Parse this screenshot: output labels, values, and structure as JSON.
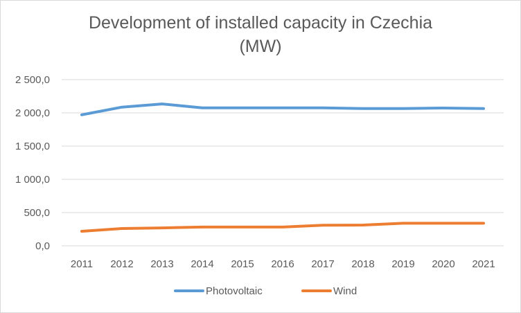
{
  "chart_data": {
    "type": "line",
    "title_line1": "Development of installed capacity in Czechia",
    "title_line2": "(MW)",
    "categories": [
      "2011",
      "2012",
      "2013",
      "2014",
      "2015",
      "2016",
      "2017",
      "2018",
      "2019",
      "2020",
      "2021"
    ],
    "y_ticks": [
      0,
      500,
      1000,
      1500,
      2000,
      2500
    ],
    "y_tick_labels": [
      "0,0",
      "500,0",
      "1 000,0",
      "1 500,0",
      "2 000,0",
      "2 500,0"
    ],
    "ylim": [
      0,
      2500
    ],
    "grid": true,
    "legend_position": "bottom",
    "series": [
      {
        "name": "Photovoltaic",
        "color": "#5b9bd5",
        "values": [
          1971,
          2086,
          2134,
          2075,
          2075,
          2075,
          2075,
          2066,
          2066,
          2073,
          2066
        ]
      },
      {
        "name": "Wind",
        "color": "#ed7d31",
        "values": [
          219,
          260,
          270,
          282,
          282,
          282,
          309,
          312,
          340,
          340,
          340
        ]
      }
    ]
  }
}
